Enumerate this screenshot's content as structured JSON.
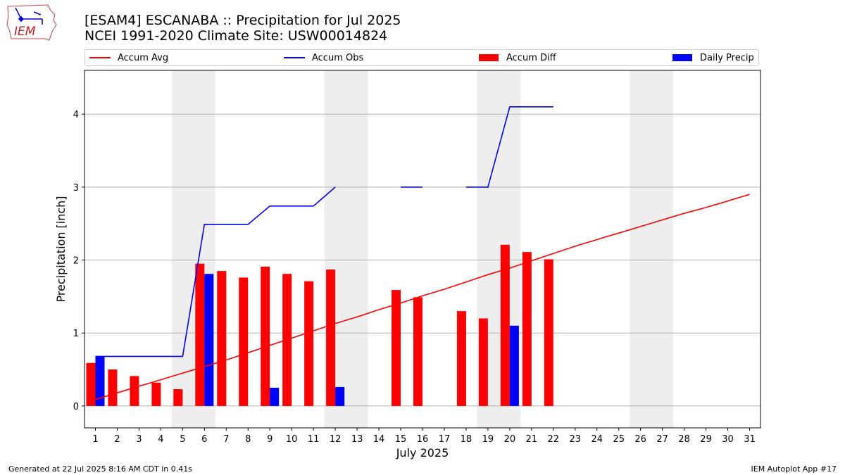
{
  "header": {
    "title_line1": "[ESAM4] ESCANABA :: Precipitation for Jul 2025",
    "title_line2": "NCEI 1991-2020 Climate Site: USW00014824",
    "logo_text": "IEM"
  },
  "footer": {
    "generated": "Generated at 22 Jul 2025 8:16 AM CDT in 0.41s",
    "app": "IEM Autoplot App #17"
  },
  "colors": {
    "avg": "#ff0000",
    "obs": "#0000ff",
    "diff": "#ff0000",
    "daily": "#0000ff",
    "weekend_shade": "#eeeeee",
    "grid": "#b0b0b0"
  },
  "chart_data": {
    "type": "bar",
    "xlabel": "July 2025",
    "ylabel": "Precipitation [inch]",
    "xlim": [
      0.5,
      31.5
    ],
    "ylim": [
      -0.3,
      4.6
    ],
    "yticks": [
      0,
      1,
      2,
      3,
      4
    ],
    "grid": "horizontal",
    "legend_position": "top",
    "shaded_day_groups": [
      [
        5,
        6
      ],
      [
        12,
        13
      ],
      [
        19,
        20
      ],
      [
        26,
        27
      ]
    ],
    "categories": [
      1,
      2,
      3,
      4,
      5,
      6,
      7,
      8,
      9,
      10,
      11,
      12,
      13,
      14,
      15,
      16,
      17,
      18,
      19,
      20,
      21,
      22,
      23,
      24,
      25,
      26,
      27,
      28,
      29,
      30,
      31
    ],
    "legend": [
      "Accum Avg",
      "Accum Obs",
      "Accum Diff",
      "Daily Precip"
    ],
    "series": [
      {
        "name": "Accum Avg",
        "type": "line",
        "values": [
          0.09,
          0.18,
          0.27,
          0.36,
          0.45,
          0.54,
          0.63,
          0.73,
          0.83,
          0.93,
          1.03,
          1.13,
          1.22,
          1.32,
          1.41,
          1.51,
          1.6,
          1.7,
          1.8,
          1.89,
          1.99,
          2.09,
          2.19,
          2.28,
          2.37,
          2.46,
          2.55,
          2.64,
          2.72,
          2.81,
          2.9
        ]
      },
      {
        "name": "Accum Obs",
        "type": "line",
        "values": [
          0.68,
          0.68,
          0.68,
          0.68,
          0.68,
          2.49,
          2.49,
          2.49,
          2.74,
          2.74,
          2.74,
          3.0,
          null,
          null,
          3.0,
          3.0,
          null,
          3.0,
          3.0,
          4.1,
          4.1,
          4.1,
          null,
          null,
          null,
          null,
          null,
          null,
          null,
          null,
          null
        ]
      },
      {
        "name": "Accum Diff",
        "type": "bar",
        "values": [
          0.59,
          0.5,
          0.41,
          0.32,
          0.23,
          1.95,
          1.85,
          1.76,
          1.91,
          1.81,
          1.71,
          1.87,
          null,
          null,
          1.59,
          1.49,
          null,
          1.3,
          1.2,
          2.21,
          2.11,
          2.01,
          null,
          null,
          null,
          null,
          null,
          null,
          null,
          null,
          null
        ]
      },
      {
        "name": "Daily Precip",
        "type": "bar",
        "values": [
          0.68,
          0,
          0,
          0,
          0,
          1.81,
          0,
          0,
          0.25,
          0,
          0,
          0.26,
          null,
          null,
          0,
          0,
          null,
          0,
          0,
          1.1,
          0,
          0,
          null,
          null,
          null,
          null,
          null,
          null,
          null,
          null,
          null
        ]
      }
    ]
  }
}
